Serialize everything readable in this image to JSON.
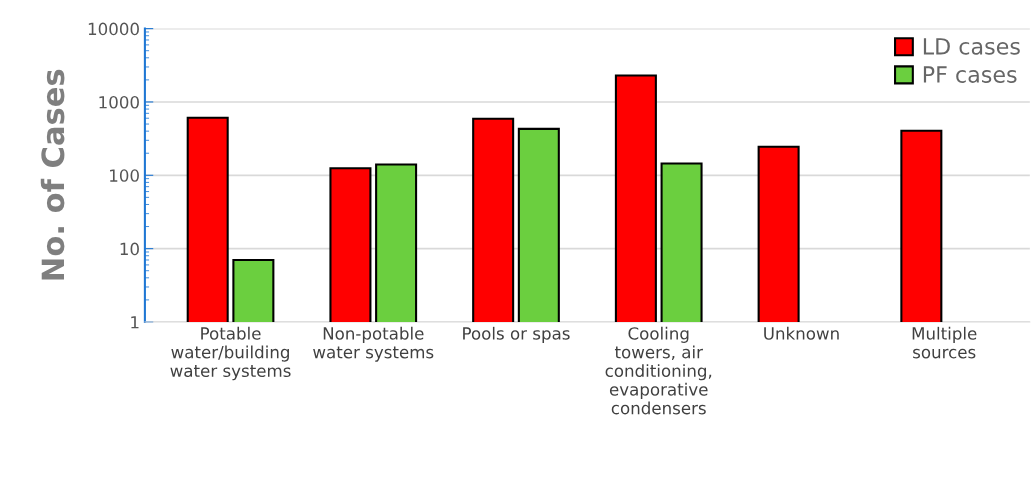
{
  "chart_data": {
    "type": "bar",
    "ylabel": "No. of Cases",
    "categories": [
      "Potable\nwater/building\nwater systems",
      "Non-potable\nwater systems",
      "Pools or spas",
      "Cooling\ntowers, air\nconditioning,\nevaporative\ncondensers",
      "Unknown",
      "Multiple\nsources"
    ],
    "series": [
      {
        "name": "LD cases",
        "color": "#ff0000",
        "values": [
          610,
          125,
          590,
          2300,
          245,
          405
        ]
      },
      {
        "name": "PF cases",
        "color": "#6bcf3f",
        "values": [
          7,
          140,
          430,
          145,
          null,
          null
        ]
      }
    ],
    "log": true,
    "ylim": [
      1,
      10000
    ],
    "yticks": [
      1,
      10,
      100,
      1000,
      10000
    ],
    "grid": "y",
    "legend": "top right"
  }
}
